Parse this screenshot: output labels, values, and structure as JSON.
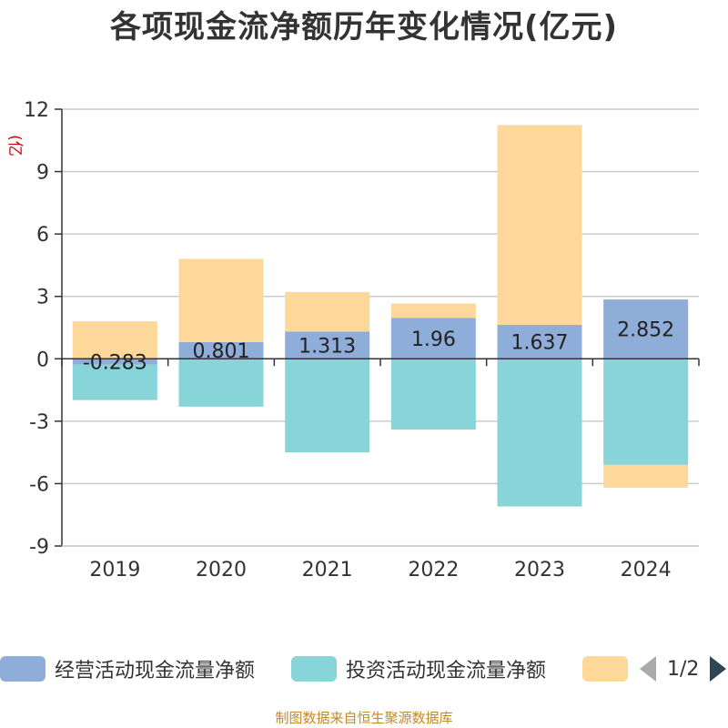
{
  "chart_data": {
    "type": "bar",
    "stacked": true,
    "title": "各项现金流净额历年变化情况(亿元)",
    "ylabel": "(亿元)",
    "categories": [
      "2019",
      "2020",
      "2021",
      "2022",
      "2023",
      "2024"
    ],
    "ylim": [
      -9,
      12
    ],
    "yticks": [
      -9,
      -6,
      -3,
      0,
      3,
      6,
      9,
      12
    ],
    "grid": true,
    "series": [
      {
        "name": "经营活动现金流量净额",
        "color": "#8fadd9",
        "values": [
          -0.283,
          0.801,
          1.313,
          1.96,
          1.637,
          2.852
        ],
        "data_labels": [
          "-0.283",
          "0.801",
          "1.313",
          "1.96",
          "1.637",
          "2.852"
        ]
      },
      {
        "name": "投资活动现金流量净额",
        "color": "#87d5d8",
        "values": [
          -1.7,
          -2.3,
          -4.5,
          -3.4,
          -7.1,
          -5.1
        ]
      },
      {
        "name": "",
        "color": "#fdd89a",
        "values": [
          1.8,
          4.0,
          1.9,
          0.7,
          9.6,
          -1.1
        ]
      }
    ]
  },
  "legend": {
    "page_text": "1/2"
  },
  "source": "制图数据来自恒生聚源数据库"
}
